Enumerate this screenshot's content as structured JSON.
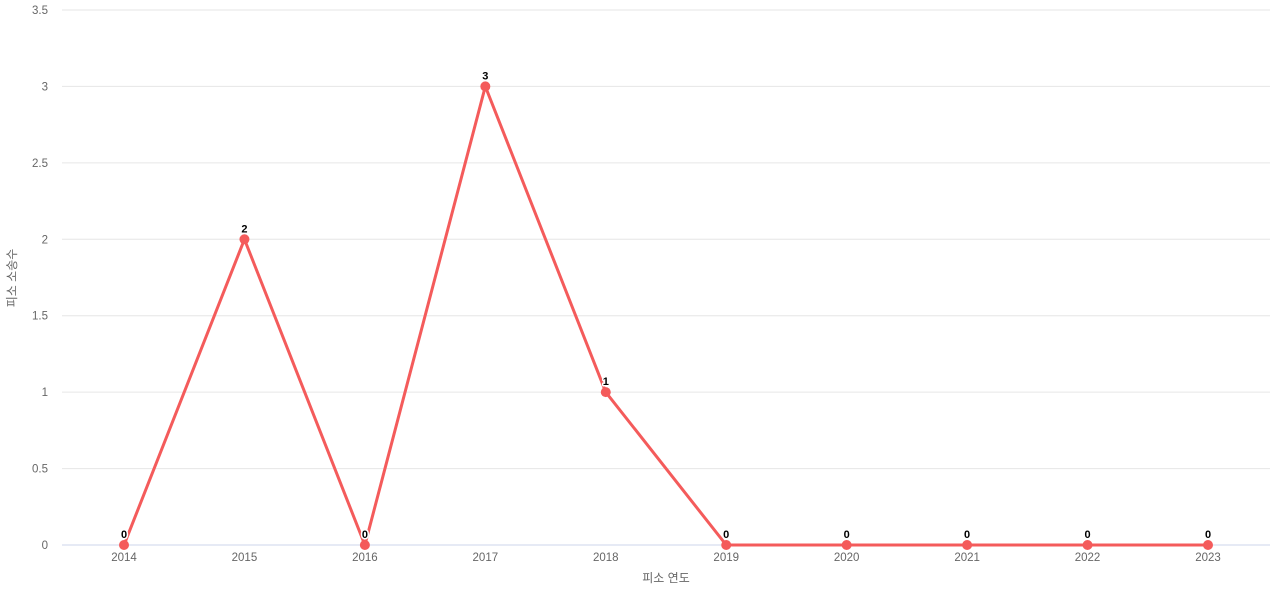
{
  "chart_data": {
    "type": "line",
    "title": "",
    "categories": [
      "2014",
      "2015",
      "2016",
      "2017",
      "2018",
      "2019",
      "2020",
      "2021",
      "2022",
      "2023"
    ],
    "values": [
      0,
      2,
      0,
      3,
      1,
      0,
      0,
      0,
      0,
      0
    ],
    "data_labels": [
      "0",
      "2",
      "0",
      "3",
      "1",
      "0",
      "0",
      "0",
      "0",
      "0"
    ],
    "xlabel": "피소 연도",
    "ylabel": "피소 소송수",
    "ylim": [
      0,
      3.5
    ],
    "yticks": [
      0,
      0.5,
      1,
      1.5,
      2,
      2.5,
      3,
      3.5
    ],
    "ytick_labels": [
      "0",
      "0.5",
      "1",
      "1.5",
      "2",
      "2.5",
      "3",
      "3.5"
    ],
    "grid": "horizontal",
    "legend": "none",
    "marker": "circle",
    "colors": {
      "series": "#f45b5b",
      "gridline": "#e6e6e6",
      "axis_line": "#ccd6eb",
      "tick_label": "#666666",
      "axis_title": "#666666",
      "data_label": "#000000",
      "background": "#ffffff"
    }
  }
}
